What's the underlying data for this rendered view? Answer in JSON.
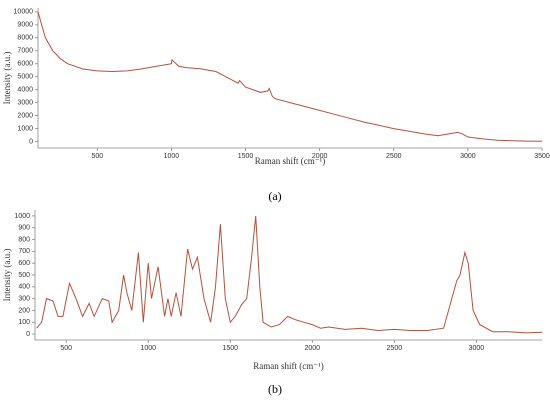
{
  "chart_data": [
    {
      "type": "line",
      "title": "(a)",
      "xlabel": "Raman shift (cm⁻¹)",
      "ylabel": "Intensity (a.u.)",
      "xlim": [
        100,
        3500
      ],
      "ylim": [
        -500,
        10300
      ],
      "xticks": [
        500,
        1000,
        1500,
        2000,
        2500,
        3000,
        3500
      ],
      "yticks": [
        0,
        1000,
        2000,
        3000,
        4000,
        5000,
        6000,
        7000,
        8000,
        9000,
        10000
      ],
      "x": [
        100,
        150,
        200,
        250,
        300,
        400,
        500,
        600,
        700,
        800,
        900,
        950,
        1000,
        1003,
        1050,
        1100,
        1200,
        1300,
        1350,
        1400,
        1450,
        1460,
        1500,
        1600,
        1650,
        1660,
        1680,
        1700,
        1800,
        1900,
        2000,
        2100,
        2200,
        2300,
        2400,
        2500,
        2600,
        2700,
        2800,
        2850,
        2900,
        2930,
        2960,
        3000,
        3100,
        3200,
        3300,
        3400,
        3500
      ],
      "series": [
        {
          "name": "a",
          "color": "#b5523b",
          "values": [
            10000,
            8000,
            7000,
            6400,
            6000,
            5600,
            5450,
            5400,
            5450,
            5600,
            5800,
            5900,
            6000,
            6300,
            5800,
            5700,
            5600,
            5400,
            5100,
            4800,
            4500,
            4700,
            4200,
            3800,
            3900,
            4100,
            3500,
            3300,
            3000,
            2700,
            2400,
            2100,
            1800,
            1500,
            1250,
            1000,
            800,
            600,
            450,
            550,
            650,
            700,
            600,
            350,
            200,
            100,
            60,
            30,
            20
          ]
        }
      ]
    },
    {
      "type": "line",
      "title": "(b)",
      "xlabel": "Raman shift (cm⁻¹)",
      "ylabel": "Intensity (a.u.)",
      "xlim": [
        310,
        3400
      ],
      "ylim": [
        -50,
        1050
      ],
      "xticks": [
        500,
        1000,
        1500,
        2000,
        2500,
        3000
      ],
      "yticks": [
        0,
        100,
        200,
        300,
        400,
        500,
        600,
        700,
        800,
        900,
        1000
      ],
      "x": [
        320,
        350,
        380,
        420,
        450,
        480,
        520,
        560,
        600,
        640,
        670,
        720,
        760,
        780,
        820,
        850,
        870,
        900,
        940,
        970,
        1000,
        1020,
        1060,
        1100,
        1120,
        1140,
        1170,
        1200,
        1240,
        1270,
        1300,
        1340,
        1380,
        1410,
        1440,
        1470,
        1500,
        1530,
        1570,
        1600,
        1630,
        1655,
        1680,
        1700,
        1750,
        1800,
        1850,
        1900,
        1950,
        2000,
        2050,
        2100,
        2200,
        2300,
        2400,
        2500,
        2600,
        2700,
        2800,
        2850,
        2880,
        2900,
        2930,
        2950,
        2980,
        3020,
        3100,
        3200,
        3300,
        3400
      ],
      "series": [
        {
          "name": "b",
          "color": "#b5523b",
          "values": [
            50,
            100,
            300,
            280,
            150,
            150,
            430,
            300,
            150,
            260,
            150,
            300,
            280,
            100,
            200,
            500,
            350,
            200,
            690,
            100,
            600,
            300,
            570,
            150,
            300,
            150,
            350,
            150,
            720,
            550,
            650,
            300,
            100,
            400,
            930,
            300,
            100,
            150,
            250,
            300,
            650,
            1000,
            400,
            100,
            60,
            80,
            150,
            120,
            100,
            80,
            50,
            60,
            40,
            50,
            30,
            40,
            30,
            30,
            50,
            300,
            450,
            500,
            690,
            600,
            200,
            80,
            20,
            20,
            10,
            15
          ]
        }
      ]
    }
  ]
}
